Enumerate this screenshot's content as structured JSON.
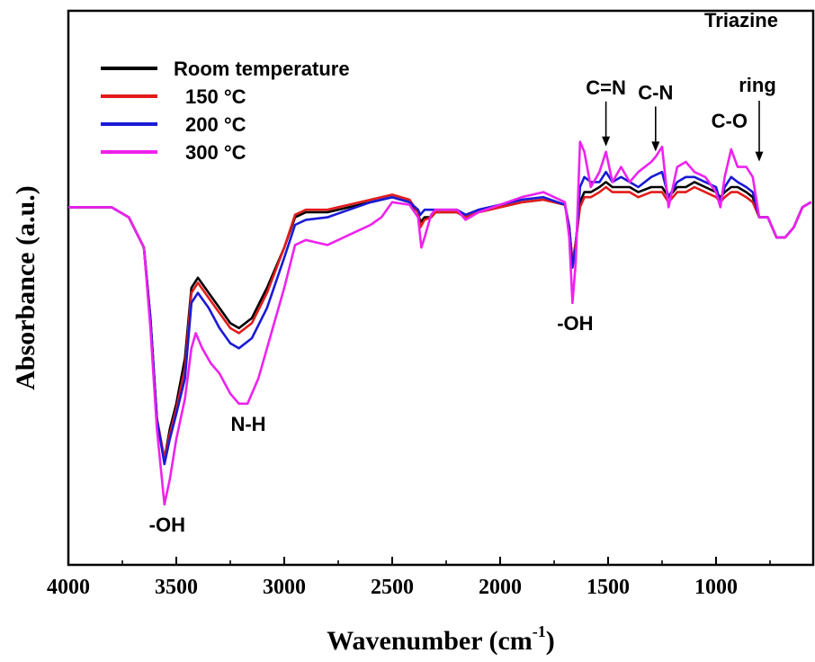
{
  "chart_data": {
    "type": "line",
    "title": "",
    "xlabel": "Wavenumber (cm",
    "xlabel_sup": "-1",
    "xlabel_end": ")",
    "ylabel": "Absorbance (a.u.)",
    "xlim": [
      4000,
      550
    ],
    "ylim": [
      0,
      1
    ],
    "x_reversed": true,
    "x_ticks": [
      4000,
      3500,
      3000,
      2500,
      2000,
      1500,
      1000
    ],
    "y_ticks_labeled": false,
    "grid": false,
    "legend_position": "top-left",
    "series": [
      {
        "name": "Room temperature",
        "color": "#000000",
        "points": [
          [
            4000,
            0.66
          ],
          [
            3900,
            0.66
          ],
          [
            3800,
            0.66
          ],
          [
            3720,
            0.64
          ],
          [
            3650,
            0.58
          ],
          [
            3620,
            0.44
          ],
          [
            3590,
            0.24
          ],
          [
            3555,
            0.16
          ],
          [
            3530,
            0.22
          ],
          [
            3500,
            0.27
          ],
          [
            3460,
            0.36
          ],
          [
            3430,
            0.5
          ],
          [
            3400,
            0.52
          ],
          [
            3350,
            0.49
          ],
          [
            3300,
            0.46
          ],
          [
            3250,
            0.43
          ],
          [
            3210,
            0.42
          ],
          [
            3150,
            0.44
          ],
          [
            3080,
            0.5
          ],
          [
            3000,
            0.58
          ],
          [
            2950,
            0.64
          ],
          [
            2900,
            0.65
          ],
          [
            2800,
            0.65
          ],
          [
            2700,
            0.66
          ],
          [
            2600,
            0.67
          ],
          [
            2500,
            0.68
          ],
          [
            2420,
            0.67
          ],
          [
            2380,
            0.65
          ],
          [
            2370,
            0.63
          ],
          [
            2350,
            0.64
          ],
          [
            2320,
            0.64
          ],
          [
            2300,
            0.65
          ],
          [
            2200,
            0.65
          ],
          [
            2160,
            0.64
          ],
          [
            2100,
            0.65
          ],
          [
            2000,
            0.66
          ],
          [
            1900,
            0.67
          ],
          [
            1800,
            0.675
          ],
          [
            1700,
            0.665
          ],
          [
            1680,
            0.62
          ],
          [
            1665,
            0.55
          ],
          [
            1650,
            0.59
          ],
          [
            1630,
            0.67
          ],
          [
            1610,
            0.69
          ],
          [
            1580,
            0.69
          ],
          [
            1540,
            0.7
          ],
          [
            1510,
            0.71
          ],
          [
            1480,
            0.7
          ],
          [
            1440,
            0.7
          ],
          [
            1400,
            0.7
          ],
          [
            1360,
            0.69
          ],
          [
            1300,
            0.7
          ],
          [
            1250,
            0.7
          ],
          [
            1220,
            0.68
          ],
          [
            1180,
            0.7
          ],
          [
            1140,
            0.7
          ],
          [
            1100,
            0.71
          ],
          [
            1050,
            0.7
          ],
          [
            1000,
            0.69
          ],
          [
            980,
            0.68
          ],
          [
            960,
            0.69
          ],
          [
            930,
            0.7
          ],
          [
            900,
            0.7
          ],
          [
            860,
            0.69
          ],
          [
            830,
            0.68
          ],
          [
            800,
            0.64
          ],
          [
            760,
            0.64
          ],
          [
            720,
            0.6
          ],
          [
            680,
            0.6
          ],
          [
            640,
            0.62
          ],
          [
            600,
            0.66
          ],
          [
            560,
            0.67
          ]
        ]
      },
      {
        "name": "150 °C",
        "color": "#e31b1b",
        "points": [
          [
            4000,
            0.66
          ],
          [
            3900,
            0.66
          ],
          [
            3800,
            0.66
          ],
          [
            3720,
            0.64
          ],
          [
            3650,
            0.58
          ],
          [
            3620,
            0.44
          ],
          [
            3590,
            0.24
          ],
          [
            3555,
            0.16
          ],
          [
            3530,
            0.21
          ],
          [
            3500,
            0.26
          ],
          [
            3460,
            0.34
          ],
          [
            3430,
            0.49
          ],
          [
            3400,
            0.51
          ],
          [
            3350,
            0.48
          ],
          [
            3300,
            0.45
          ],
          [
            3250,
            0.42
          ],
          [
            3210,
            0.41
          ],
          [
            3150,
            0.43
          ],
          [
            3080,
            0.49
          ],
          [
            3000,
            0.58
          ],
          [
            2950,
            0.645
          ],
          [
            2900,
            0.655
          ],
          [
            2800,
            0.655
          ],
          [
            2700,
            0.665
          ],
          [
            2600,
            0.675
          ],
          [
            2500,
            0.685
          ],
          [
            2420,
            0.675
          ],
          [
            2380,
            0.65
          ],
          [
            2370,
            0.62
          ],
          [
            2350,
            0.635
          ],
          [
            2320,
            0.64
          ],
          [
            2300,
            0.65
          ],
          [
            2200,
            0.65
          ],
          [
            2160,
            0.64
          ],
          [
            2100,
            0.65
          ],
          [
            2000,
            0.66
          ],
          [
            1900,
            0.67
          ],
          [
            1800,
            0.675
          ],
          [
            1700,
            0.665
          ],
          [
            1680,
            0.62
          ],
          [
            1665,
            0.55
          ],
          [
            1650,
            0.59
          ],
          [
            1630,
            0.66
          ],
          [
            1610,
            0.68
          ],
          [
            1580,
            0.68
          ],
          [
            1540,
            0.69
          ],
          [
            1510,
            0.7
          ],
          [
            1480,
            0.69
          ],
          [
            1440,
            0.69
          ],
          [
            1400,
            0.69
          ],
          [
            1360,
            0.68
          ],
          [
            1300,
            0.69
          ],
          [
            1250,
            0.69
          ],
          [
            1220,
            0.67
          ],
          [
            1180,
            0.69
          ],
          [
            1140,
            0.69
          ],
          [
            1100,
            0.7
          ],
          [
            1050,
            0.69
          ],
          [
            1000,
            0.68
          ],
          [
            980,
            0.67
          ],
          [
            960,
            0.68
          ],
          [
            930,
            0.69
          ],
          [
            900,
            0.69
          ],
          [
            860,
            0.68
          ],
          [
            830,
            0.67
          ],
          [
            800,
            0.64
          ],
          [
            760,
            0.64
          ],
          [
            720,
            0.6
          ],
          [
            680,
            0.6
          ],
          [
            640,
            0.62
          ],
          [
            600,
            0.66
          ],
          [
            560,
            0.67
          ]
        ]
      },
      {
        "name": "200 °C",
        "color": "#1a1ad6",
        "points": [
          [
            4000,
            0.66
          ],
          [
            3900,
            0.66
          ],
          [
            3800,
            0.66
          ],
          [
            3720,
            0.64
          ],
          [
            3650,
            0.58
          ],
          [
            3620,
            0.44
          ],
          [
            3590,
            0.24
          ],
          [
            3555,
            0.15
          ],
          [
            3530,
            0.2
          ],
          [
            3500,
            0.25
          ],
          [
            3460,
            0.32
          ],
          [
            3430,
            0.47
          ],
          [
            3400,
            0.49
          ],
          [
            3350,
            0.46
          ],
          [
            3300,
            0.42
          ],
          [
            3250,
            0.39
          ],
          [
            3210,
            0.38
          ],
          [
            3150,
            0.4
          ],
          [
            3080,
            0.46
          ],
          [
            3000,
            0.56
          ],
          [
            2950,
            0.625
          ],
          [
            2900,
            0.635
          ],
          [
            2800,
            0.64
          ],
          [
            2700,
            0.655
          ],
          [
            2600,
            0.67
          ],
          [
            2500,
            0.68
          ],
          [
            2420,
            0.67
          ],
          [
            2380,
            0.655
          ],
          [
            2370,
            0.645
          ],
          [
            2350,
            0.655
          ],
          [
            2320,
            0.655
          ],
          [
            2300,
            0.655
          ],
          [
            2200,
            0.655
          ],
          [
            2160,
            0.645
          ],
          [
            2100,
            0.655
          ],
          [
            2000,
            0.665
          ],
          [
            1900,
            0.675
          ],
          [
            1800,
            0.68
          ],
          [
            1700,
            0.665
          ],
          [
            1680,
            0.62
          ],
          [
            1665,
            0.54
          ],
          [
            1650,
            0.58
          ],
          [
            1630,
            0.7
          ],
          [
            1610,
            0.72
          ],
          [
            1580,
            0.71
          ],
          [
            1540,
            0.71
          ],
          [
            1510,
            0.73
          ],
          [
            1480,
            0.71
          ],
          [
            1440,
            0.72
          ],
          [
            1400,
            0.71
          ],
          [
            1360,
            0.7
          ],
          [
            1300,
            0.72
          ],
          [
            1250,
            0.73
          ],
          [
            1220,
            0.68
          ],
          [
            1180,
            0.71
          ],
          [
            1140,
            0.72
          ],
          [
            1100,
            0.72
          ],
          [
            1050,
            0.71
          ],
          [
            1000,
            0.7
          ],
          [
            980,
            0.67
          ],
          [
            960,
            0.7
          ],
          [
            930,
            0.72
          ],
          [
            900,
            0.71
          ],
          [
            860,
            0.7
          ],
          [
            830,
            0.69
          ],
          [
            800,
            0.64
          ],
          [
            760,
            0.64
          ],
          [
            720,
            0.6
          ],
          [
            680,
            0.6
          ],
          [
            640,
            0.62
          ],
          [
            600,
            0.66
          ],
          [
            560,
            0.67
          ]
        ]
      },
      {
        "name": "300 °C",
        "color": "#ee22ee",
        "points": [
          [
            4000,
            0.66
          ],
          [
            3900,
            0.66
          ],
          [
            3800,
            0.66
          ],
          [
            3720,
            0.64
          ],
          [
            3650,
            0.58
          ],
          [
            3620,
            0.42
          ],
          [
            3590,
            0.22
          ],
          [
            3555,
            0.07
          ],
          [
            3530,
            0.12
          ],
          [
            3500,
            0.2
          ],
          [
            3460,
            0.28
          ],
          [
            3430,
            0.38
          ],
          [
            3410,
            0.41
          ],
          [
            3380,
            0.38
          ],
          [
            3340,
            0.35
          ],
          [
            3300,
            0.33
          ],
          [
            3250,
            0.29
          ],
          [
            3210,
            0.27
          ],
          [
            3170,
            0.27
          ],
          [
            3120,
            0.32
          ],
          [
            3080,
            0.38
          ],
          [
            3000,
            0.5
          ],
          [
            2950,
            0.585
          ],
          [
            2900,
            0.595
          ],
          [
            2850,
            0.59
          ],
          [
            2800,
            0.585
          ],
          [
            2750,
            0.595
          ],
          [
            2700,
            0.605
          ],
          [
            2650,
            0.615
          ],
          [
            2600,
            0.625
          ],
          [
            2550,
            0.64
          ],
          [
            2500,
            0.67
          ],
          [
            2420,
            0.665
          ],
          [
            2380,
            0.64
          ],
          [
            2365,
            0.58
          ],
          [
            2350,
            0.6
          ],
          [
            2320,
            0.645
          ],
          [
            2300,
            0.655
          ],
          [
            2200,
            0.655
          ],
          [
            2160,
            0.635
          ],
          [
            2100,
            0.65
          ],
          [
            2000,
            0.665
          ],
          [
            1900,
            0.68
          ],
          [
            1800,
            0.69
          ],
          [
            1700,
            0.67
          ],
          [
            1680,
            0.6
          ],
          [
            1665,
            0.47
          ],
          [
            1650,
            0.55
          ],
          [
            1630,
            0.79
          ],
          [
            1610,
            0.77
          ],
          [
            1580,
            0.7
          ],
          [
            1540,
            0.73
          ],
          [
            1510,
            0.77
          ],
          [
            1480,
            0.71
          ],
          [
            1440,
            0.74
          ],
          [
            1400,
            0.71
          ],
          [
            1360,
            0.73
          ],
          [
            1300,
            0.75
          ],
          [
            1280,
            0.76
          ],
          [
            1250,
            0.78
          ],
          [
            1220,
            0.66
          ],
          [
            1180,
            0.74
          ],
          [
            1140,
            0.75
          ],
          [
            1100,
            0.73
          ],
          [
            1050,
            0.72
          ],
          [
            1000,
            0.69
          ],
          [
            980,
            0.66
          ],
          [
            960,
            0.72
          ],
          [
            930,
            0.775
          ],
          [
            900,
            0.74
          ],
          [
            860,
            0.74
          ],
          [
            830,
            0.72
          ],
          [
            800,
            0.64
          ],
          [
            760,
            0.64
          ],
          [
            720,
            0.6
          ],
          [
            680,
            0.6
          ],
          [
            640,
            0.62
          ],
          [
            600,
            0.66
          ],
          [
            560,
            0.67
          ]
        ]
      }
    ],
    "annotations": [
      {
        "text": "-OH",
        "x": 3555,
        "y": 0.07,
        "place": "below"
      },
      {
        "text": "N-H",
        "x": 3200,
        "y": 0.27,
        "place": "below"
      },
      {
        "text": "-OH",
        "x": 1665,
        "y": 0.47,
        "place": "below"
      },
      {
        "text": "C=N",
        "x": 1510,
        "y": 0.77,
        "place": "arrow-above"
      },
      {
        "text": "C-N",
        "x": 1280,
        "y": 0.76,
        "place": "arrow-above"
      },
      {
        "text": "C-O",
        "x": 930,
        "y": 0.775,
        "place": "above"
      },
      {
        "text": "Triazine",
        "text2": "ring",
        "x": 800,
        "y": 0.74,
        "place": "arrow-above-tall"
      }
    ]
  }
}
